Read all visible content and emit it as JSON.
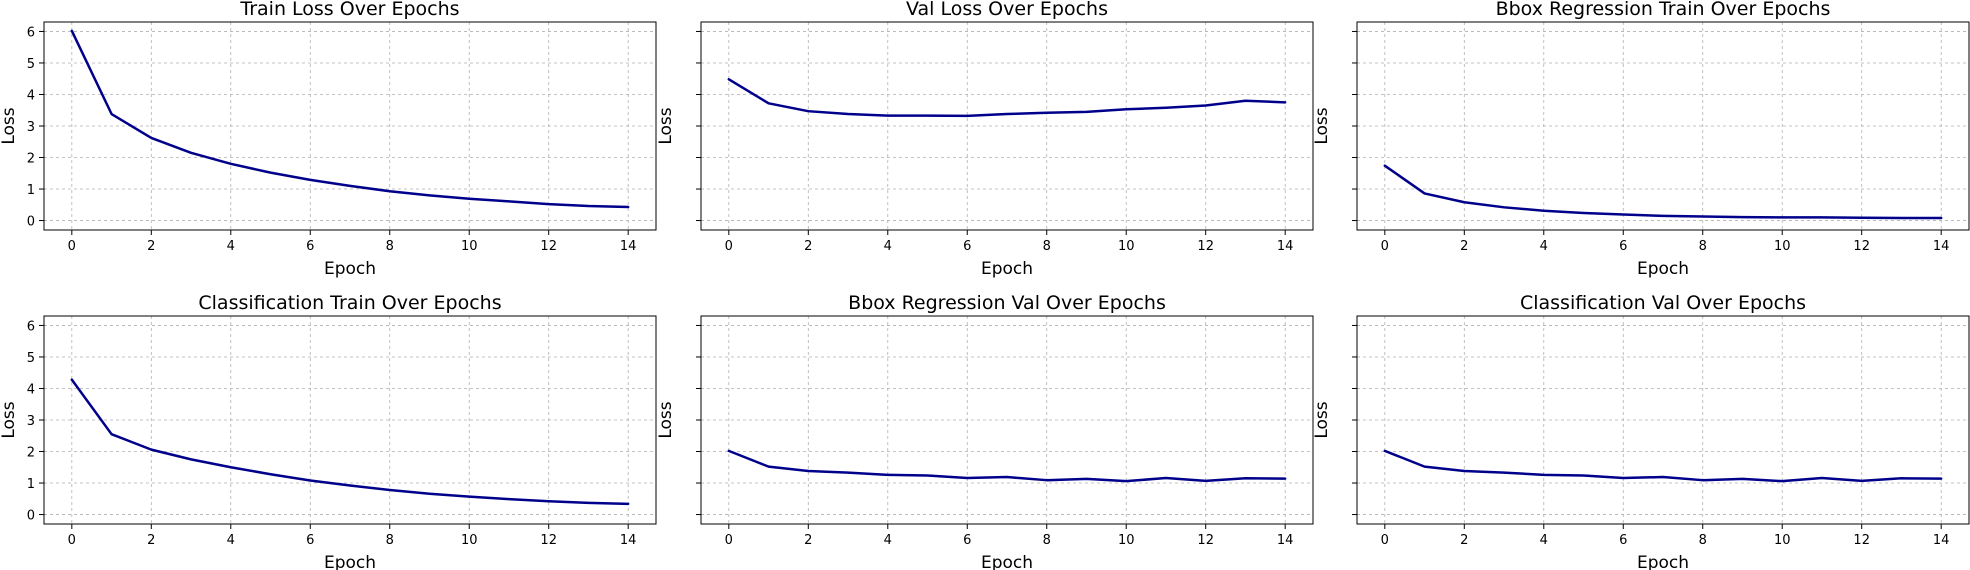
{
  "colors": {
    "line": "#00008b"
  },
  "chart_data": [
    {
      "type": "line",
      "title": "Train Loss Over Epochs",
      "xlabel": "Epoch",
      "ylabel": "Loss",
      "xlim": [
        -0.7,
        14.7
      ],
      "ylim": [
        -0.3,
        6.3
      ],
      "xticks": [
        0,
        2,
        4,
        6,
        8,
        10,
        12,
        14
      ],
      "yticks": [
        0,
        1,
        2,
        3,
        4,
        5,
        6
      ],
      "show_ytick_labels": true,
      "grid": true,
      "x": [
        0,
        1,
        2,
        3,
        4,
        5,
        6,
        7,
        8,
        9,
        10,
        11,
        12,
        13,
        14
      ],
      "y": [
        6.02,
        3.38,
        2.62,
        2.15,
        1.8,
        1.52,
        1.29,
        1.1,
        0.93,
        0.8,
        0.69,
        0.61,
        0.52,
        0.46,
        0.43
      ]
    },
    {
      "type": "line",
      "title": "Val Loss Over Epochs",
      "xlabel": "Epoch",
      "ylabel": "Loss",
      "xlim": [
        -0.7,
        14.7
      ],
      "ylim": [
        -0.3,
        6.3
      ],
      "xticks": [
        0,
        2,
        4,
        6,
        8,
        10,
        12,
        14
      ],
      "yticks": [
        0,
        1,
        2,
        3,
        4,
        5,
        6
      ],
      "show_ytick_labels": false,
      "grid": true,
      "x": [
        0,
        1,
        2,
        3,
        4,
        5,
        6,
        7,
        8,
        9,
        10,
        11,
        12,
        13,
        14
      ],
      "y": [
        4.48,
        3.72,
        3.47,
        3.38,
        3.33,
        3.33,
        3.32,
        3.38,
        3.42,
        3.45,
        3.53,
        3.58,
        3.65,
        3.8,
        3.75
      ]
    },
    {
      "type": "line",
      "title": "Bbox Regression Train Over Epochs",
      "xlabel": "Epoch",
      "ylabel": "Loss",
      "xlim": [
        -0.7,
        14.7
      ],
      "ylim": [
        -0.3,
        6.3
      ],
      "xticks": [
        0,
        2,
        4,
        6,
        8,
        10,
        12,
        14
      ],
      "yticks": [
        0,
        1,
        2,
        3,
        4,
        5,
        6
      ],
      "show_ytick_labels": false,
      "grid": true,
      "x": [
        0,
        1,
        2,
        3,
        4,
        5,
        6,
        7,
        8,
        9,
        10,
        11,
        12,
        13,
        14
      ],
      "y": [
        1.74,
        0.86,
        0.58,
        0.42,
        0.31,
        0.24,
        0.19,
        0.15,
        0.13,
        0.11,
        0.1,
        0.1,
        0.09,
        0.08,
        0.08
      ]
    },
    {
      "type": "line",
      "title": "Classification Train Over Epochs",
      "xlabel": "Epoch",
      "ylabel": "Loss",
      "xlim": [
        -0.7,
        14.7
      ],
      "ylim": [
        -0.3,
        6.3
      ],
      "xticks": [
        0,
        2,
        4,
        6,
        8,
        10,
        12,
        14
      ],
      "yticks": [
        0,
        1,
        2,
        3,
        4,
        5,
        6
      ],
      "show_ytick_labels": true,
      "grid": true,
      "x": [
        0,
        1,
        2,
        3,
        4,
        5,
        6,
        7,
        8,
        9,
        10,
        11,
        12,
        13,
        14
      ],
      "y": [
        4.28,
        2.55,
        2.06,
        1.75,
        1.5,
        1.28,
        1.08,
        0.92,
        0.78,
        0.66,
        0.57,
        0.49,
        0.42,
        0.37,
        0.34
      ]
    },
    {
      "type": "line",
      "title": "Bbox Regression Val Over Epochs",
      "xlabel": "Epoch",
      "ylabel": "Loss",
      "xlim": [
        -0.7,
        14.7
      ],
      "ylim": [
        -0.3,
        6.3
      ],
      "xticks": [
        0,
        2,
        4,
        6,
        8,
        10,
        12,
        14
      ],
      "yticks": [
        0,
        1,
        2,
        3,
        4,
        5,
        6
      ],
      "show_ytick_labels": false,
      "grid": true,
      "x": [
        0,
        1,
        2,
        3,
        4,
        5,
        6,
        7,
        8,
        9,
        10,
        11,
        12,
        13,
        14
      ],
      "y": [
        2.02,
        1.52,
        1.38,
        1.33,
        1.26,
        1.24,
        1.16,
        1.19,
        1.09,
        1.13,
        1.06,
        1.16,
        1.07,
        1.15,
        1.14
      ]
    },
    {
      "type": "line",
      "title": "Classification Val Over Epochs",
      "xlabel": "Epoch",
      "ylabel": "Loss",
      "xlim": [
        -0.7,
        14.7
      ],
      "ylim": [
        -0.3,
        6.3
      ],
      "xticks": [
        0,
        2,
        4,
        6,
        8,
        10,
        12,
        14
      ],
      "yticks": [
        0,
        1,
        2,
        3,
        4,
        5,
        6
      ],
      "show_ytick_labels": false,
      "grid": true,
      "x": [
        0,
        1,
        2,
        3,
        4,
        5,
        6,
        7,
        8,
        9,
        10,
        11,
        12,
        13,
        14
      ],
      "y": [
        2.02,
        1.52,
        1.38,
        1.33,
        1.26,
        1.24,
        1.16,
        1.19,
        1.09,
        1.13,
        1.06,
        1.16,
        1.07,
        1.15,
        1.14
      ]
    }
  ]
}
